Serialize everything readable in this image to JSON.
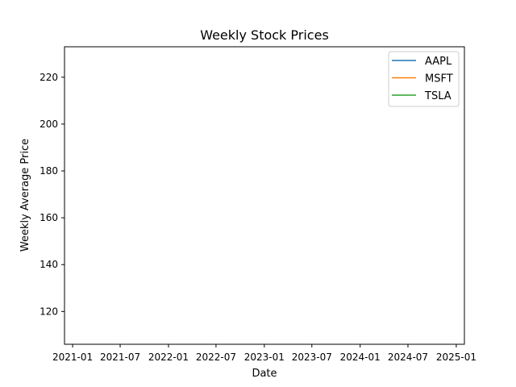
{
  "chart_data": {
    "type": "line",
    "title": "Weekly Stock Prices",
    "xlabel": "Date",
    "ylabel": "Weekly Average Price",
    "xlim": [
      "2020-12-01",
      "2025-02-01"
    ],
    "ylim": [
      106,
      233
    ],
    "x_ticks": [
      "2021-01",
      "2021-07",
      "2022-01",
      "2022-07",
      "2023-01",
      "2023-07",
      "2024-01",
      "2024-07",
      "2025-01"
    ],
    "x_tick_dates": [
      "2021-01-01",
      "2021-07-01",
      "2022-01-01",
      "2022-07-01",
      "2023-01-01",
      "2023-07-01",
      "2024-01-01",
      "2024-07-01",
      "2025-01-01"
    ],
    "y_ticks": [
      120,
      140,
      160,
      180,
      200,
      220
    ],
    "grid": false,
    "legend_placement": "top-right",
    "series": [
      {
        "name": "AAPL",
        "color": "#1f77b4",
        "x": [],
        "values": []
      },
      {
        "name": "MSFT",
        "color": "#ff7f0e",
        "x": [],
        "values": []
      },
      {
        "name": "TSLA",
        "color": "#2ca02c",
        "x": [],
        "values": []
      }
    ]
  }
}
